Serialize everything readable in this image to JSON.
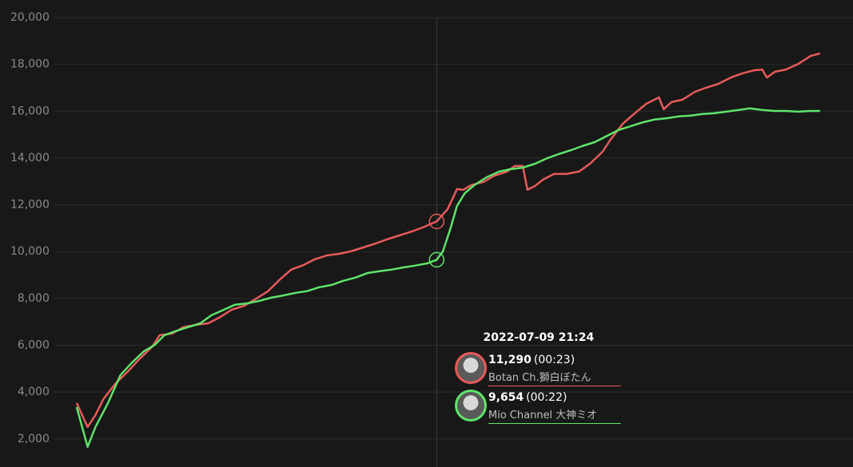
{
  "chart_data": {
    "type": "line",
    "ylim": [
      800,
      20000
    ],
    "yticks": [
      {
        "value": 2000,
        "label": "2,000"
      },
      {
        "value": 4000,
        "label": "4,000"
      },
      {
        "value": 6000,
        "label": "6,000"
      },
      {
        "value": 8000,
        "label": "8,000"
      },
      {
        "value": 10000,
        "label": "10,000"
      },
      {
        "value": 12000,
        "label": "12,000"
      },
      {
        "value": 14000,
        "label": "14,000"
      },
      {
        "value": 16000,
        "label": "16,000"
      },
      {
        "value": 18000,
        "label": "18,000"
      },
      {
        "value": 20000,
        "label": "20,000"
      }
    ],
    "xlim": [
      -4.9,
      49.6
    ],
    "grid": true,
    "series": [
      {
        "name": "Botan Ch.獅白ぼたん",
        "color": "#e85a5a",
        "x": [
          0,
          0.7,
          1.2,
          1.7,
          2.5,
          3.3,
          4.0,
          4.8,
          5.3,
          6.1,
          6.8,
          7.6,
          8.4,
          9.1,
          9.9,
          10.7,
          11.4,
          12.2,
          13.0,
          13.7,
          14.5,
          15.2,
          16.0,
          16.8,
          17.5,
          18.3,
          19.1,
          19.8,
          20.6,
          21.4,
          22.1,
          23.0,
          23.7,
          24.3,
          24.7,
          25.2,
          26.0,
          26.7,
          27.5,
          28.0,
          28.5,
          28.8,
          29.3,
          29.8,
          30.5,
          31.3,
          32.1,
          32.8,
          33.6,
          34.1,
          34.9,
          35.6,
          36.4,
          37.2,
          37.5,
          38.0,
          38.7,
          39.5,
          40.2,
          41.0,
          41.8,
          42.5,
          43.3,
          43.8,
          44.1,
          44.6,
          45.3,
          46.1,
          46.9,
          47.5
        ],
        "values": [
          3530,
          2510,
          3020,
          3700,
          4380,
          4900,
          5410,
          5920,
          6430,
          6500,
          6770,
          6870,
          6940,
          7180,
          7520,
          7690,
          7960,
          8300,
          8820,
          9230,
          9430,
          9670,
          9840,
          9910,
          10010,
          10180,
          10350,
          10520,
          10690,
          10860,
          11030,
          11290,
          11820,
          12670,
          12640,
          12840,
          12980,
          13250,
          13420,
          13660,
          13660,
          12640,
          12810,
          13080,
          13320,
          13320,
          13420,
          13760,
          14270,
          14780,
          15470,
          15880,
          16320,
          16590,
          16080,
          16390,
          16490,
          16830,
          17000,
          17170,
          17440,
          17610,
          17750,
          17780,
          17440,
          17680,
          17780,
          18020,
          18360,
          18470
        ]
      },
      {
        "name": "Mio Channel 大神ミオ",
        "color": "#5ee46a",
        "x": [
          0,
          0.7,
          1.2,
          2.0,
          2.8,
          3.5,
          4.3,
          5.0,
          5.6,
          6.3,
          7.1,
          7.9,
          8.6,
          9.4,
          10.1,
          10.9,
          11.7,
          12.4,
          13.2,
          14.0,
          14.7,
          15.5,
          16.3,
          17.0,
          17.8,
          18.6,
          19.3,
          20.1,
          20.9,
          21.6,
          22.4,
          23.0,
          23.4,
          23.9,
          24.3,
          24.8,
          25.4,
          26.2,
          27.0,
          27.7,
          28.5,
          29.3,
          30.1,
          30.8,
          31.6,
          32.3,
          33.1,
          33.9,
          34.6,
          35.4,
          36.2,
          36.9,
          37.7,
          38.5,
          39.2,
          40.0,
          40.7,
          41.5,
          42.3,
          43.0,
          43.8,
          44.6,
          45.3,
          46.1,
          46.9,
          47.5
        ],
        "values": [
          3360,
          1660,
          2510,
          3530,
          4730,
          5240,
          5750,
          6020,
          6430,
          6600,
          6770,
          6940,
          7280,
          7520,
          7730,
          7790,
          7900,
          8030,
          8130,
          8240,
          8310,
          8480,
          8580,
          8750,
          8890,
          9090,
          9160,
          9230,
          9330,
          9400,
          9500,
          9654,
          10010,
          11030,
          11950,
          12500,
          12840,
          13180,
          13420,
          13520,
          13590,
          13760,
          14000,
          14170,
          14340,
          14510,
          14680,
          14950,
          15190,
          15360,
          15530,
          15640,
          15700,
          15780,
          15810,
          15880,
          15910,
          15980,
          16050,
          16120,
          16050,
          16010,
          16010,
          15980,
          16010,
          16010
        ]
      }
    ],
    "tooltip": {
      "title": "2022-07-09 21:24",
      "x": 23.0,
      "items": [
        {
          "value": 11290,
          "label": "11,290",
          "duration": "(00:23)"
        },
        {
          "value": 9654,
          "label": "9,654",
          "duration": "(00:22)"
        }
      ]
    }
  }
}
